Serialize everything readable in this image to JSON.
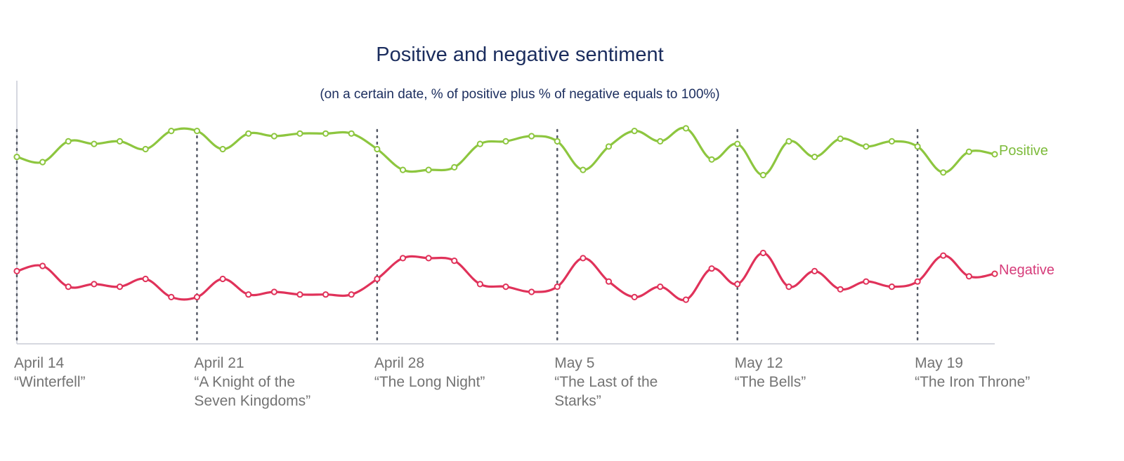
{
  "title": "Positive and negative sentiment",
  "subtitle": "(on a certain date, % of positive plus % of negative equals to 100%)",
  "episodes": [
    {
      "date": "April 14",
      "name": "“Winterfell”"
    },
    {
      "date": "April 21",
      "name": "“A Knight of the Seven Kingdoms”"
    },
    {
      "date": "April 28",
      "name": "“The Long Night”"
    },
    {
      "date": "May 5",
      "name": "“The Last of the Starks”"
    },
    {
      "date": "May 12",
      "name": "“The Bells”"
    },
    {
      "date": "May 19",
      "name": "“The Iron Throne”"
    }
  ],
  "chart_data": {
    "type": "line",
    "title": "Positive and negative sentiment",
    "subtitle": "(on a certain date, % of positive plus % of negative equals to 100%)",
    "x": [
      "April 14",
      "April 15",
      "April 16",
      "April 17",
      "April 18",
      "April 19",
      "April 20",
      "April 21",
      "April 22",
      "April 23",
      "April 24",
      "April 25",
      "April 26",
      "April 27",
      "April 28",
      "April 29",
      "April 30",
      "May 1",
      "May 2",
      "May 3",
      "May 4",
      "May 5",
      "May 6",
      "May 7",
      "May 8",
      "May 9",
      "May 10",
      "May 11",
      "May 12",
      "May 13",
      "May 14",
      "May 15",
      "May 16",
      "May 17",
      "May 18",
      "May 19",
      "May 20",
      "May 21",
      "May 22"
    ],
    "ylim": [
      0,
      100
    ],
    "series": [
      {
        "name": "Positive",
        "color": "#8dc63f",
        "values": [
          72,
          70,
          78,
          77,
          78,
          75,
          82,
          82,
          75,
          81,
          80,
          81,
          81,
          81,
          75,
          67,
          67,
          68,
          77,
          78,
          80,
          78,
          67,
          76,
          82,
          78,
          83,
          71,
          77,
          65,
          78,
          72,
          79,
          76,
          78,
          76,
          66,
          74,
          73
        ]
      },
      {
        "name": "Negative",
        "color": "#e0325a",
        "values": [
          28,
          30,
          22,
          23,
          22,
          25,
          18,
          18,
          25,
          19,
          20,
          19,
          19,
          19,
          25,
          33,
          33,
          32,
          23,
          22,
          20,
          22,
          33,
          24,
          18,
          22,
          17,
          29,
          23,
          35,
          22,
          28,
          21,
          24,
          22,
          24,
          34,
          26,
          27
        ]
      }
    ],
    "episode_markers": [
      "April 14",
      "April 21",
      "April 28",
      "May 5",
      "May 12",
      "May 19"
    ],
    "legend": "right-end labels"
  }
}
